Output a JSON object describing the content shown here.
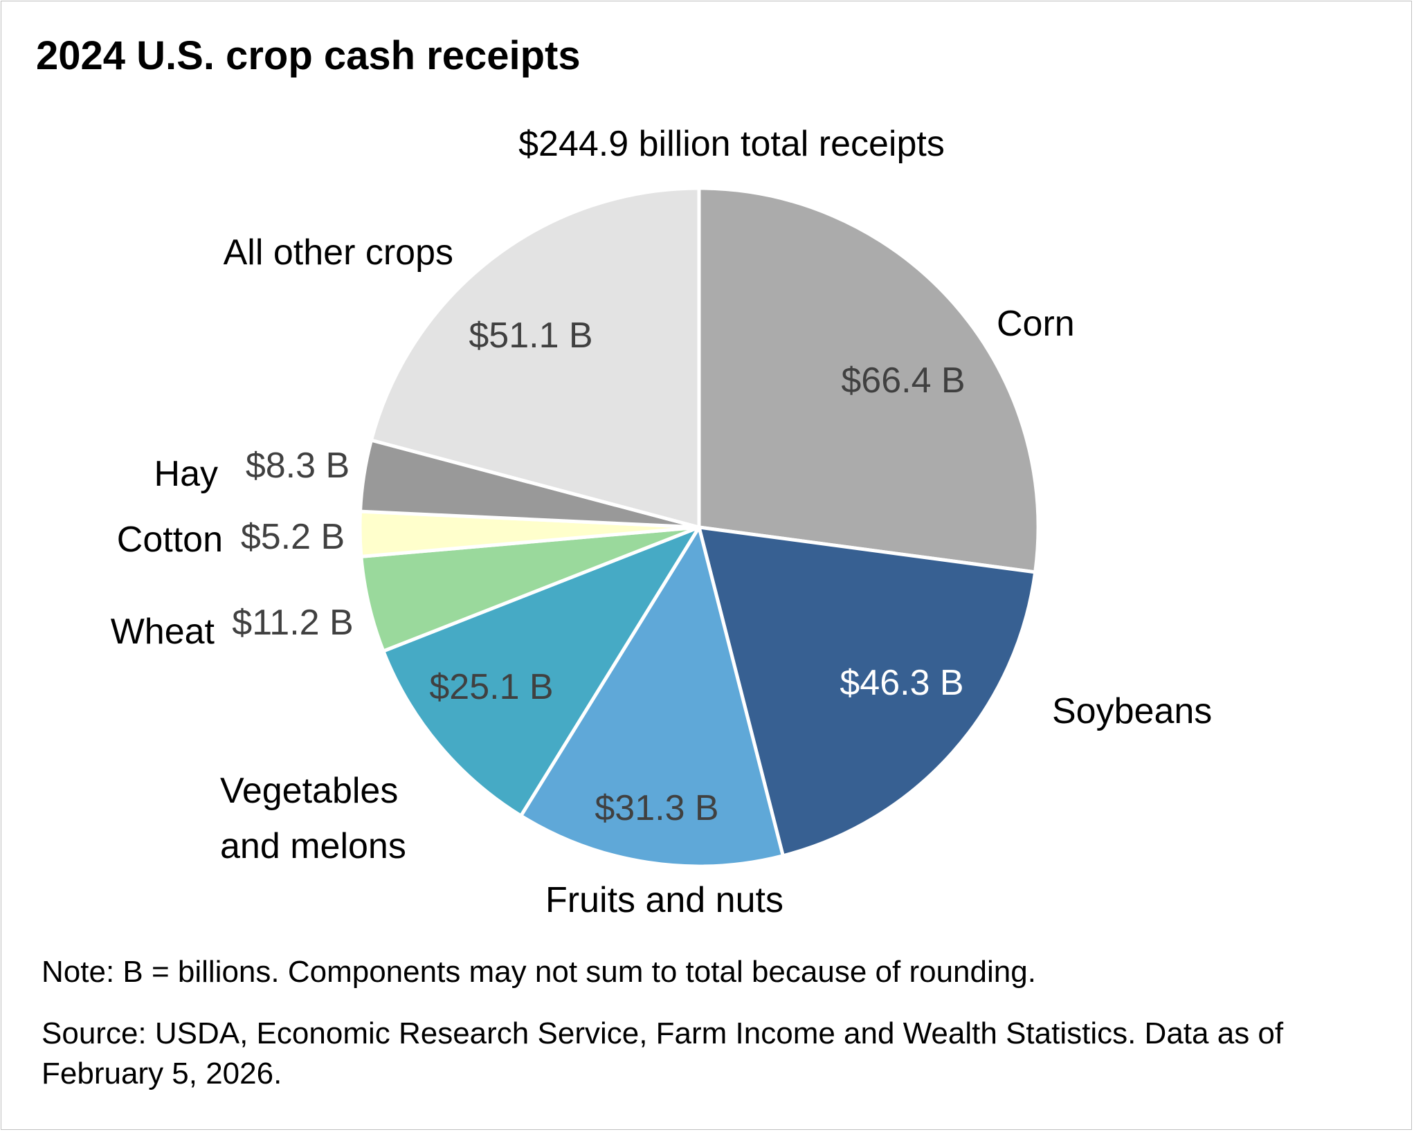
{
  "title": "2024 U.S. crop cash receipts",
  "note": "Note: B = billions. Components may not sum to total because of rounding.",
  "source": "Source: USDA, Economic Research Service, Farm Income and Wealth Statistics. Data as of February 5, 2026.",
  "chart_data": {
    "type": "pie",
    "subtitle": "$244.9 billion total receipts",
    "total": 244.9,
    "unit": "billion dollars",
    "start": "12 o'clock",
    "direction": "clockwise",
    "slices": [
      {
        "label": "Corn",
        "label_lines": [
          "Corn"
        ],
        "value": 66.4,
        "value_label": "$66.4 B",
        "color": "#ababab",
        "value_color": "#404040"
      },
      {
        "label": "Soybeans",
        "label_lines": [
          "Soybeans"
        ],
        "value": 46.3,
        "value_label": "$46.3 B",
        "color": "#376092",
        "value_color": "#ffffff"
      },
      {
        "label": "Fruits and nuts",
        "label_lines": [
          "Fruits and nuts"
        ],
        "value": 31.3,
        "value_label": "$31.3 B",
        "color": "#5fa8d8",
        "value_color": "#404040"
      },
      {
        "label": "Vegetables and melons",
        "label_lines": [
          "Vegetables",
          "and melons"
        ],
        "value": 25.1,
        "value_label": "$25.1 B",
        "color": "#46aac5",
        "value_color": "#404040"
      },
      {
        "label": "Wheat",
        "label_lines": [
          "Wheat"
        ],
        "value": 11.2,
        "value_label": "$11.2 B",
        "color": "#9ad99c",
        "value_color": "#404040"
      },
      {
        "label": "Cotton",
        "label_lines": [
          "Cotton"
        ],
        "value": 5.2,
        "value_label": "$5.2 B",
        "color": "#ffffcc",
        "value_color": "#404040"
      },
      {
        "label": "Hay",
        "label_lines": [
          "Hay"
        ],
        "value": 8.3,
        "value_label": "$8.3 B",
        "color": "#999999",
        "value_color": "#404040"
      },
      {
        "label": "All other crops",
        "label_lines": [
          "All other crops"
        ],
        "value": 51.1,
        "value_label": "$51.1 B",
        "color": "#e3e3e3",
        "value_color": "#404040"
      }
    ]
  }
}
